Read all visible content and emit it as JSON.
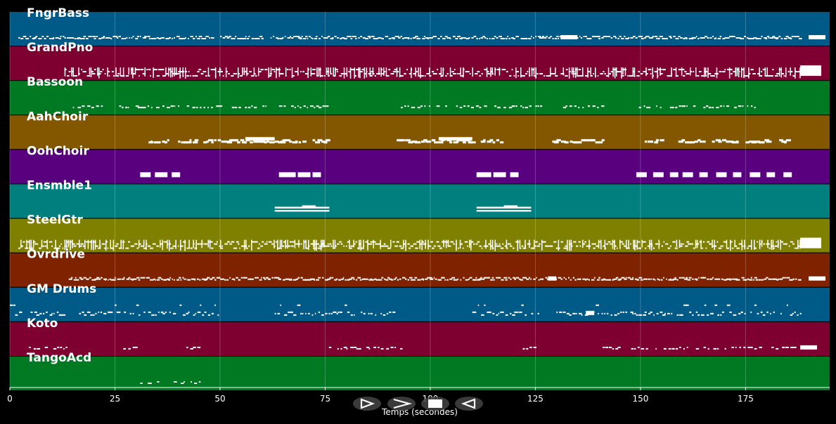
{
  "axis": {
    "label": "Temps (secondes)",
    "xmin": 0,
    "xmax": 195,
    "ticks": [
      0,
      25,
      50,
      75,
      100,
      125,
      150,
      175
    ]
  },
  "tracks": [
    {
      "name": "FngrBass",
      "color": "#005a87",
      "style": "dense",
      "segments": [
        [
          2,
          14
        ],
        [
          14,
          48
        ],
        [
          50,
          60
        ],
        [
          62,
          92
        ],
        [
          92,
          130
        ],
        [
          130,
          140
        ],
        [
          140,
          188
        ]
      ],
      "spans": [
        [
          131,
          135
        ],
        [
          190,
          194
        ]
      ]
    },
    {
      "name": "GrandPno",
      "color": "#7e0030",
      "style": "heavy",
      "segments": [
        [
          13,
          50
        ],
        [
          50,
          62
        ],
        [
          62,
          130
        ],
        [
          131,
          188
        ]
      ],
      "spans": [
        [
          188,
          193
        ]
      ]
    },
    {
      "name": "Bassoon",
      "color": "#007a22",
      "style": "sparse",
      "segments": [
        [
          15,
          24
        ],
        [
          26,
          40
        ],
        [
          40,
          62
        ],
        [
          64,
          76
        ],
        [
          93,
          124
        ],
        [
          125,
          141
        ],
        [
          149,
          155
        ],
        [
          157,
          178
        ]
      ],
      "spans": []
    },
    {
      "name": "AahChoir",
      "color": "#825700",
      "style": "blocks",
      "segments": [
        [
          33,
          38
        ],
        [
          40,
          44
        ],
        [
          46,
          62
        ],
        [
          63,
          65
        ],
        [
          65,
          70
        ],
        [
          72,
          76
        ],
        [
          92,
          103
        ],
        [
          104,
          110
        ],
        [
          112,
          117
        ],
        [
          129,
          141
        ],
        [
          151,
          155
        ],
        [
          159,
          165
        ],
        [
          167,
          173
        ],
        [
          175,
          181
        ],
        [
          183,
          185
        ]
      ],
      "spans": [
        [
          56,
          63
        ],
        [
          102,
          110
        ]
      ]
    },
    {
      "name": "OohChoir",
      "color": "#58007e",
      "style": "bars",
      "segments": [],
      "spans": [
        [
          31,
          33.5
        ],
        [
          34.5,
          37.5
        ],
        [
          38.5,
          40.5
        ],
        [
          64,
          68
        ],
        [
          68.5,
          71.5
        ],
        [
          72,
          74
        ],
        [
          111,
          114.5
        ],
        [
          115,
          118
        ],
        [
          119,
          121
        ],
        [
          149,
          151.5
        ],
        [
          153,
          155.5
        ],
        [
          157,
          159
        ],
        [
          160,
          162.5
        ],
        [
          164,
          166
        ],
        [
          168,
          170.5
        ],
        [
          172,
          174
        ],
        [
          176,
          178.5
        ],
        [
          180,
          182
        ],
        [
          184,
          186
        ]
      ]
    },
    {
      "name": "Ensmble1",
      "color": "#007f7f",
      "style": "ensemble",
      "segments": [],
      "spans": [
        [
          63,
          76
        ],
        [
          111,
          124
        ]
      ]
    },
    {
      "name": "SteelGtr",
      "color": "#808000",
      "style": "heavy",
      "segments": [
        [
          2,
          50
        ],
        [
          50,
          100
        ],
        [
          100,
          140
        ],
        [
          140,
          188
        ]
      ],
      "spans": [
        [
          188,
          193
        ]
      ]
    },
    {
      "name": "Ovrdrive",
      "color": "#7f2200",
      "style": "dense",
      "segments": [
        [
          14,
          50
        ],
        [
          50,
          100
        ],
        [
          100,
          128
        ],
        [
          128,
          140
        ],
        [
          140,
          188
        ]
      ],
      "spans": [
        [
          128,
          130
        ],
        [
          190,
          194
        ]
      ]
    },
    {
      "name": "GM Drums",
      "color": "#005a87",
      "style": "drums",
      "segments": [
        [
          0,
          14
        ],
        [
          16,
          50
        ],
        [
          63,
          78
        ],
        [
          78,
          92
        ],
        [
          110,
          126
        ],
        [
          130,
          142
        ],
        [
          142,
          188
        ]
      ],
      "spans": [
        [
          137,
          139
        ]
      ]
    },
    {
      "name": "Koto",
      "color": "#7e0030",
      "style": "sparse",
      "segments": [
        [
          4,
          14
        ],
        [
          27,
          30
        ],
        [
          42,
          45
        ],
        [
          75,
          93
        ],
        [
          122,
          125
        ],
        [
          141,
          188
        ]
      ],
      "spans": [
        [
          188,
          192
        ]
      ]
    },
    {
      "name": "TangoAcd",
      "color": "#007a22",
      "style": "sparse",
      "segments": [
        [
          31,
          34
        ],
        [
          35,
          36
        ],
        [
          39,
          42
        ],
        [
          43,
          45
        ]
      ],
      "spans": []
    }
  ],
  "controls": [
    {
      "id": "play",
      "icon": "play-icon"
    },
    {
      "id": "forward",
      "icon": "forward-icon"
    },
    {
      "id": "stop",
      "icon": "stop-icon"
    },
    {
      "id": "rewind",
      "icon": "rewind-icon"
    }
  ]
}
